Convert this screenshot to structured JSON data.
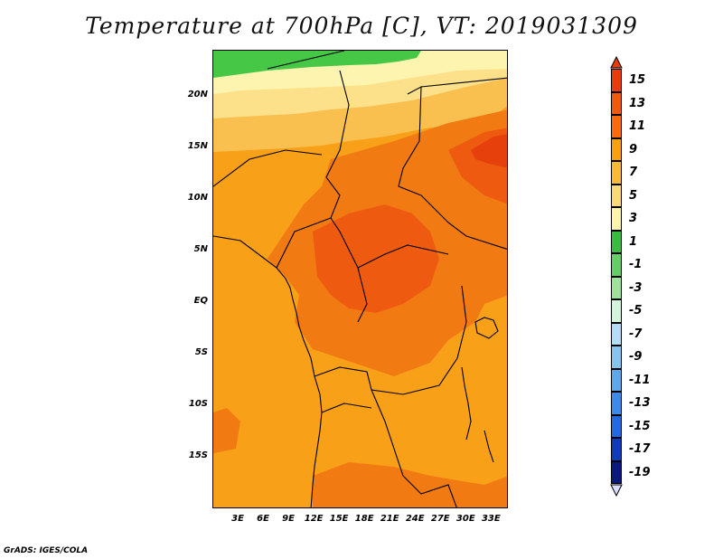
{
  "title": "Temperature at 700hPa [C], VT: 2019031309",
  "footer": "GrADS: IGES/COLA",
  "map": {
    "variable": "Temperature at 700hPa",
    "units": "C",
    "valid_time": "2019031309",
    "lon_range": [
      0,
      35
    ],
    "lat_range": [
      -20,
      24.5
    ],
    "lat_ticks": [
      {
        "value": 20,
        "label": "20N"
      },
      {
        "value": 15,
        "label": "15N"
      },
      {
        "value": 10,
        "label": "10N"
      },
      {
        "value": 5,
        "label": "5N"
      },
      {
        "value": 0,
        "label": "EQ"
      },
      {
        "value": -5,
        "label": "5S"
      },
      {
        "value": -10,
        "label": "10S"
      },
      {
        "value": -15,
        "label": "15S"
      }
    ],
    "lon_ticks": [
      {
        "value": 3,
        "label": "3E"
      },
      {
        "value": 6,
        "label": "6E"
      },
      {
        "value": 9,
        "label": "9E"
      },
      {
        "value": 12,
        "label": "12E"
      },
      {
        "value": 15,
        "label": "15E"
      },
      {
        "value": 18,
        "label": "18E"
      },
      {
        "value": 21,
        "label": "21E"
      },
      {
        "value": 24,
        "label": "24E"
      },
      {
        "value": 27,
        "label": "27E"
      },
      {
        "value": 30,
        "label": "30E"
      },
      {
        "value": 33,
        "label": "33E"
      }
    ]
  },
  "legend": {
    "labels": [
      "15",
      "13",
      "11",
      "9",
      "7",
      "5",
      "3",
      "1",
      "-1",
      "-3",
      "-5",
      "-7",
      "-9",
      "-11",
      "-13",
      "-15",
      "-17",
      "-19"
    ],
    "colors": [
      "#e83c0c",
      "#f05a0e",
      "#f76c10",
      "#f7a010",
      "#f9b838",
      "#fdd878",
      "#fdf4a8",
      "#3cbc3c",
      "#64d064",
      "#9ce49c",
      "#d4f4dc",
      "#b4dcf4",
      "#84c4f0",
      "#5ca8ec",
      "#3a8ce8",
      "#1e6ce0",
      "#0c3cb8",
      "#0a1a7c",
      "#dcdcfc"
    ]
  },
  "fields": {
    "green": "#46c846",
    "pale": "#fdf4b0",
    "light": "#fde08a",
    "yellow": "#f9c050",
    "orange": "#f8a018",
    "dark": "#f27a12",
    "red": "#ee5a10",
    "hot": "#e6400c"
  }
}
